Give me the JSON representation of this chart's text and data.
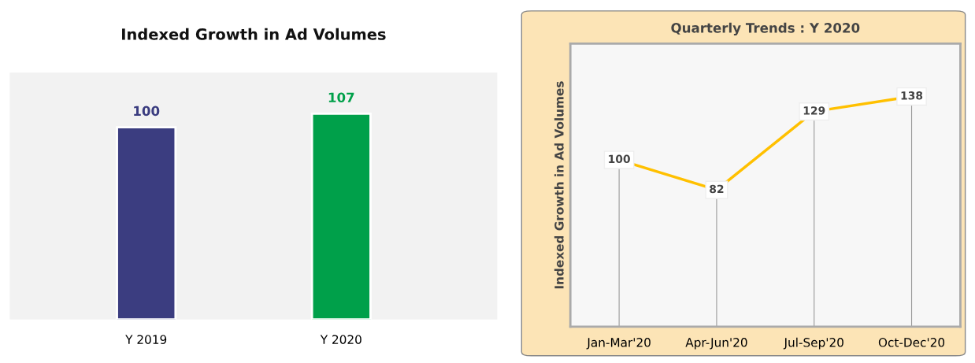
{
  "chart_data": [
    {
      "type": "bar",
      "title": "Indexed Growth in Ad Volumes",
      "categories": [
        "Y 2019",
        "Y 2020"
      ],
      "values": [
        100,
        107
      ],
      "colors": [
        "#3b3d80",
        "#00a04a"
      ],
      "data_labels": true
    },
    {
      "type": "line",
      "title": "Quarterly Trends : Y 2020",
      "ylabel": "Indexed Growth in Ad Volumes",
      "categories": [
        "Jan-Mar'20",
        "Apr-Jun'20",
        "Jul-Sep'20",
        "Oct-Dec'20"
      ],
      "series": [
        {
          "color": "#ffc000",
          "values": [
            100,
            82,
            129,
            138
          ]
        }
      ],
      "data_labels": true,
      "grid": "x",
      "marker": "square",
      "line_style": "solid",
      "tick_labels": "x"
    }
  ]
}
